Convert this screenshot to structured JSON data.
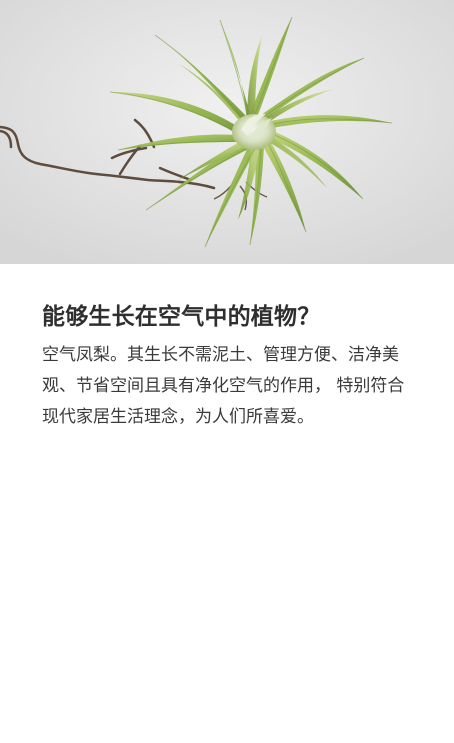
{
  "hero": {
    "image_label": "air plant image"
  },
  "article": {
    "title": "能够生长在空气中的植物？",
    "description": "空气凤梨。其生长不需泥土、管理方便、洁净美观、节省空间且具有净化空气的作用， 特别符合现代家居生活理念，为人们所喜爱。"
  },
  "colors": {
    "title_text": "#2f2f2f",
    "body_text": "#3a3a3a",
    "background": "#ffffff",
    "plant_green": "#9fbe58",
    "plant_center": "#dfe7cc",
    "hero_bg": "#e3e3e3"
  }
}
